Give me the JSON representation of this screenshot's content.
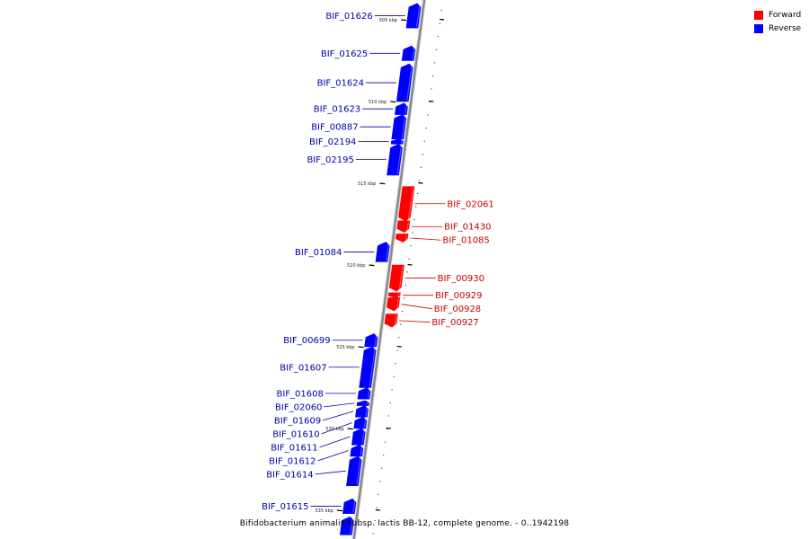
{
  "legend": {
    "items": [
      {
        "label": "Forward",
        "color": "#ff0000"
      },
      {
        "label": "Reverse",
        "color": "#0000ff"
      }
    ]
  },
  "caption": "Bifidobacterium animalis subsp. lactis BB-12, complete genome. - 0..1942198",
  "colors": {
    "forward": "#ff0000",
    "reverse": "#0000ff",
    "forward_label": "#cc0000",
    "reverse_label": "#0000aa",
    "backbone": "#8a8a8a"
  },
  "ticks": [
    {
      "label": "505 kbp",
      "kbp": 505
    },
    {
      "label": "510 kbp",
      "kbp": 510
    },
    {
      "label": "515 kbp",
      "kbp": 515
    },
    {
      "label": "520 kbp",
      "kbp": 520
    },
    {
      "label": "525 kbp",
      "kbp": 525
    },
    {
      "label": "530 kbp",
      "kbp": 530
    },
    {
      "label": "535 kbp",
      "kbp": 535
    }
  ],
  "genes": [
    {
      "name": "BIF_01626",
      "strand": "reverse",
      "start_kbp": 504.0,
      "end_kbp": 505.5
    },
    {
      "name": "BIF_01625",
      "strand": "reverse",
      "start_kbp": 506.6,
      "end_kbp": 507.5
    },
    {
      "name": "BIF_01624",
      "strand": "reverse",
      "start_kbp": 507.7,
      "end_kbp": 510.0
    },
    {
      "name": "BIF_01623",
      "strand": "reverse",
      "start_kbp": 510.1,
      "end_kbp": 510.8
    },
    {
      "name": "BIF_00887",
      "strand": "reverse",
      "start_kbp": 510.8,
      "end_kbp": 512.3
    },
    {
      "name": "BIF_02194",
      "strand": "reverse",
      "start_kbp": 512.3,
      "end_kbp": 512.6
    },
    {
      "name": "BIF_02195",
      "strand": "reverse",
      "start_kbp": 512.6,
      "end_kbp": 514.5
    },
    {
      "name": "BIF_02061",
      "strand": "forward",
      "start_kbp": 515.2,
      "end_kbp": 517.3
    },
    {
      "name": "BIF_01430",
      "strand": "forward",
      "start_kbp": 517.3,
      "end_kbp": 518.0
    },
    {
      "name": "BIF_01085",
      "strand": "forward",
      "start_kbp": 518.1,
      "end_kbp": 518.6
    },
    {
      "name": "BIF_01084",
      "strand": "reverse",
      "start_kbp": 518.6,
      "end_kbp": 519.8
    },
    {
      "name": "BIF_00930",
      "strand": "forward",
      "start_kbp": 520.0,
      "end_kbp": 521.6
    },
    {
      "name": "BIF_00929",
      "strand": "forward",
      "start_kbp": 521.7,
      "end_kbp": 522.0
    },
    {
      "name": "BIF_00928",
      "strand": "forward",
      "start_kbp": 522.0,
      "end_kbp": 522.8
    },
    {
      "name": "BIF_00927",
      "strand": "forward",
      "start_kbp": 523.0,
      "end_kbp": 523.8
    },
    {
      "name": "BIF_00699",
      "strand": "reverse",
      "start_kbp": 524.2,
      "end_kbp": 525.0
    },
    {
      "name": "BIF_01607",
      "strand": "reverse",
      "start_kbp": 525.0,
      "end_kbp": 527.5
    },
    {
      "name": "BIF_01608",
      "strand": "reverse",
      "start_kbp": 527.5,
      "end_kbp": 528.2
    },
    {
      "name": "BIF_02060",
      "strand": "reverse",
      "start_kbp": 528.3,
      "end_kbp": 528.6
    },
    {
      "name": "BIF_01609",
      "strand": "reverse",
      "start_kbp": 528.6,
      "end_kbp": 529.3
    },
    {
      "name": "BIF_01610",
      "strand": "reverse",
      "start_kbp": 529.3,
      "end_kbp": 530.0
    },
    {
      "name": "BIF_01611",
      "strand": "reverse",
      "start_kbp": 530.0,
      "end_kbp": 531.0
    },
    {
      "name": "BIF_01612",
      "strand": "reverse",
      "start_kbp": 531.0,
      "end_kbp": 531.7
    },
    {
      "name": "BIF_01614",
      "strand": "reverse",
      "start_kbp": 531.7,
      "end_kbp": 533.5
    },
    {
      "name": "BIF_01615",
      "strand": "reverse",
      "start_kbp": 534.3,
      "end_kbp": 535.2
    },
    {
      "name": "",
      "strand": "reverse",
      "start_kbp": 535.4,
      "end_kbp": 536.5
    }
  ]
}
